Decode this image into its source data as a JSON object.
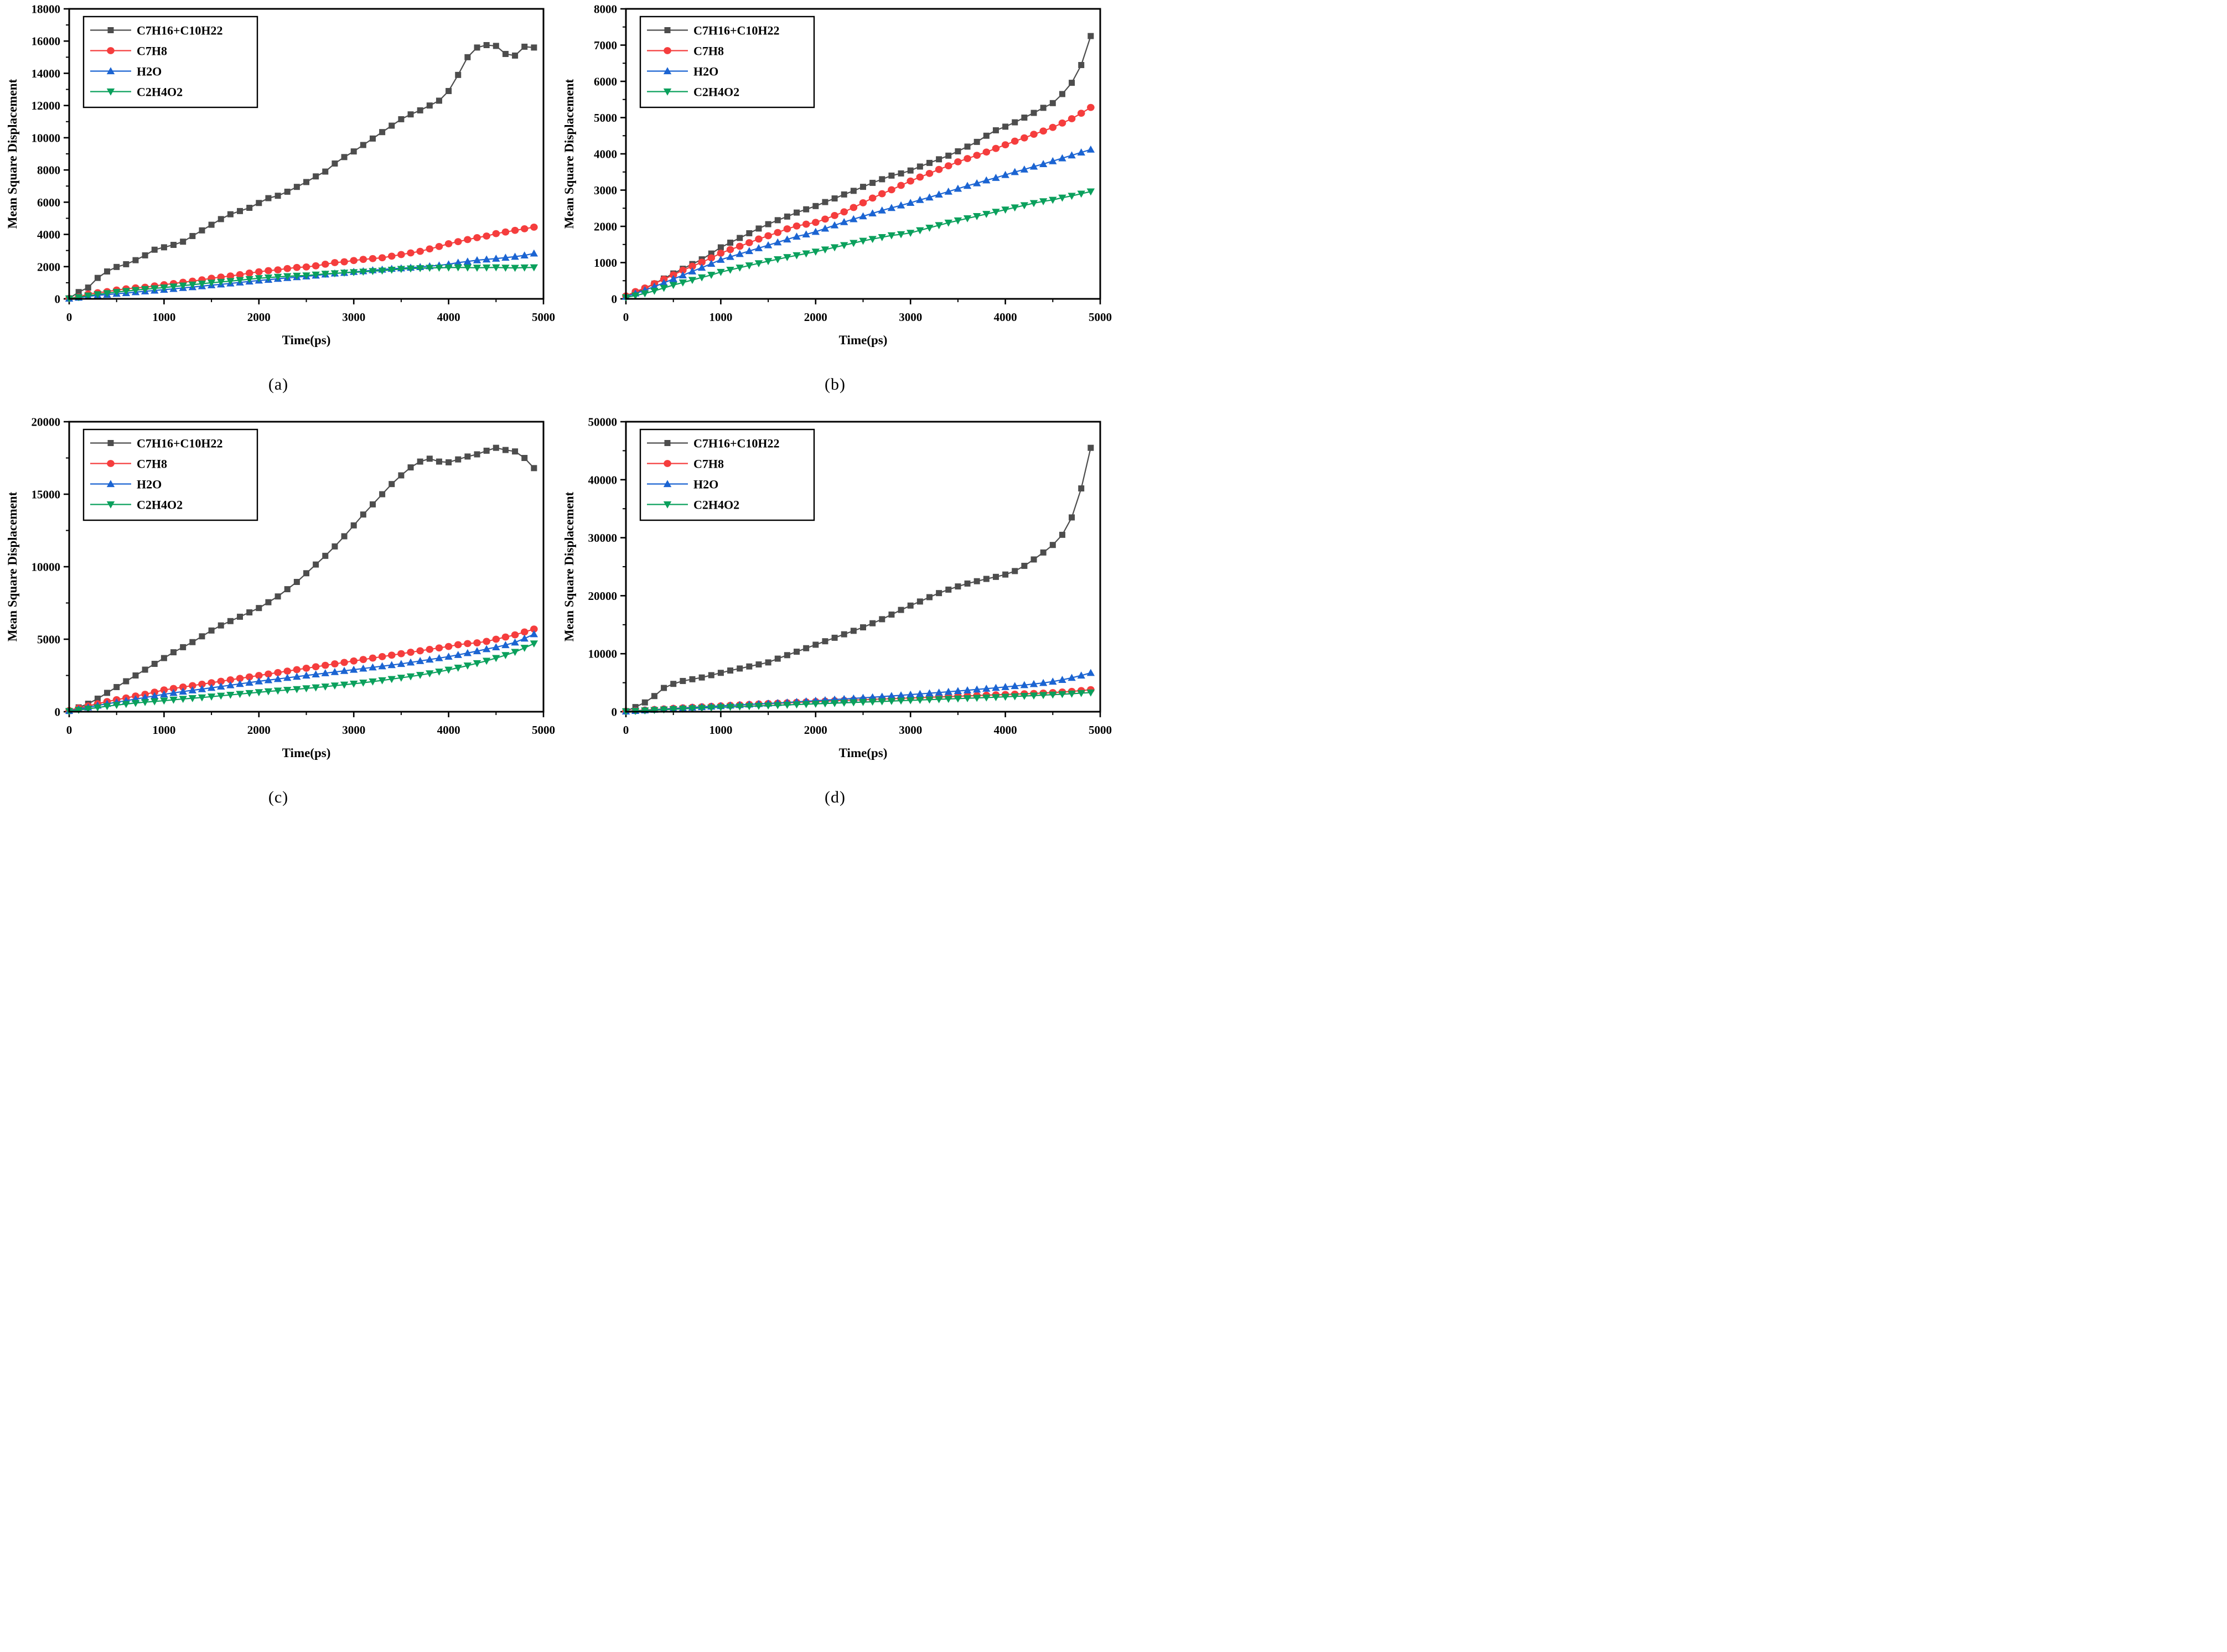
{
  "figure": {
    "background": "#ffffff",
    "axis_color": "#000000",
    "tick_label_fontsize": 21,
    "axis_label_fontsize": 23,
    "legend_fontsize": 22
  },
  "colors": {
    "gray": "#4d4d4d",
    "red": "#f53d3d",
    "blue": "#1b64d2",
    "green": "#0aa05c"
  },
  "legend_entries": [
    "C7H16+C10H22",
    "C7H8",
    "H2O",
    "C2H4O2"
  ],
  "chart_data": [
    {
      "type": "line",
      "label": "(a)",
      "xlabel": "Time(ps)",
      "ylabel": "Mean Square Displacement",
      "xlim": [
        0,
        5000
      ],
      "xtick_step": 1000,
      "ylim": [
        0,
        18000
      ],
      "ytick_step": 2000,
      "grid": false,
      "legend_position": "top-left",
      "x_start": 0,
      "x_step": 100,
      "series": [
        {
          "name": "C7H16+C10H22",
          "marker": "square",
          "color_key": "gray",
          "values": [
            30,
            420,
            700,
            1300,
            1700,
            1980,
            2150,
            2400,
            2700,
            3050,
            3200,
            3350,
            3550,
            3900,
            4250,
            4600,
            4950,
            5250,
            5450,
            5650,
            5950,
            6250,
            6400,
            6650,
            6950,
            7250,
            7600,
            7900,
            8400,
            8800,
            9150,
            9550,
            9950,
            10350,
            10750,
            11150,
            11450,
            11700,
            12000,
            12300,
            12900,
            13900,
            15000,
            15600,
            15750,
            15700,
            15200,
            15100,
            15650,
            15600
          ]
        },
        {
          "name": "C7H8",
          "marker": "circle",
          "color_key": "red",
          "values": [
            30,
            120,
            300,
            380,
            450,
            550,
            620,
            680,
            720,
            800,
            880,
            950,
            1030,
            1100,
            1180,
            1280,
            1350,
            1420,
            1500,
            1600,
            1680,
            1750,
            1800,
            1880,
            1950,
            1980,
            2050,
            2150,
            2250,
            2300,
            2380,
            2450,
            2500,
            2550,
            2650,
            2750,
            2850,
            2950,
            3100,
            3250,
            3420,
            3550,
            3680,
            3800,
            3900,
            4050,
            4150,
            4250,
            4350,
            4450
          ]
        },
        {
          "name": "H2O",
          "marker": "triangle-up",
          "color_key": "blue",
          "values": [
            20,
            80,
            150,
            220,
            260,
            320,
            360,
            420,
            470,
            520,
            570,
            620,
            680,
            730,
            790,
            850,
            900,
            960,
            1020,
            1080,
            1140,
            1190,
            1250,
            1300,
            1350,
            1400,
            1450,
            1520,
            1580,
            1620,
            1680,
            1720,
            1780,
            1820,
            1870,
            1900,
            1940,
            1980,
            2030,
            2080,
            2150,
            2250,
            2320,
            2400,
            2450,
            2500,
            2560,
            2620,
            2700,
            2820
          ]
        },
        {
          "name": "C2H4O2",
          "marker": "triangle-down",
          "color_key": "green",
          "values": [
            20,
            100,
            200,
            280,
            350,
            420,
            480,
            540,
            600,
            650,
            700,
            760,
            820,
            880,
            940,
            1000,
            1050,
            1100,
            1160,
            1220,
            1280,
            1320,
            1360,
            1400,
            1430,
            1450,
            1500,
            1550,
            1580,
            1620,
            1650,
            1680,
            1720,
            1750,
            1800,
            1850,
            1880,
            1900,
            1920,
            1930,
            1940,
            1950,
            1940,
            1930,
            1940,
            1950,
            1930,
            1920,
            1940,
            1950
          ]
        }
      ]
    },
    {
      "type": "line",
      "label": "(b)",
      "xlabel": "Time(ps)",
      "ylabel": "Mean Square Displacement",
      "xlim": [
        0,
        5000
      ],
      "xtick_step": 1000,
      "ylim": [
        0,
        8000
      ],
      "ytick_step": 1000,
      "grid": false,
      "legend_position": "top-left",
      "x_start": 0,
      "x_step": 100,
      "series": [
        {
          "name": "C7H16+C10H22",
          "marker": "square",
          "color_key": "gray",
          "values": [
            60,
            180,
            280,
            420,
            560,
            700,
            830,
            960,
            1090,
            1250,
            1420,
            1550,
            1680,
            1810,
            1940,
            2060,
            2170,
            2270,
            2380,
            2470,
            2560,
            2670,
            2770,
            2880,
            2980,
            3090,
            3200,
            3300,
            3400,
            3460,
            3540,
            3650,
            3750,
            3850,
            3950,
            4070,
            4200,
            4330,
            4500,
            4650,
            4750,
            4870,
            5000,
            5130,
            5270,
            5400,
            5650,
            5960,
            6450,
            7250
          ]
        },
        {
          "name": "C7H8",
          "marker": "circle",
          "color_key": "red",
          "values": [
            80,
            200,
            300,
            420,
            540,
            660,
            790,
            900,
            1010,
            1130,
            1260,
            1360,
            1450,
            1550,
            1650,
            1740,
            1830,
            1930,
            2010,
            2060,
            2110,
            2200,
            2300,
            2400,
            2520,
            2650,
            2780,
            2900,
            3010,
            3130,
            3250,
            3360,
            3460,
            3570,
            3670,
            3780,
            3870,
            3960,
            4050,
            4150,
            4250,
            4350,
            4440,
            4540,
            4630,
            4730,
            4850,
            4970,
            5120,
            5280
          ]
        },
        {
          "name": "H2O",
          "marker": "triangle-up",
          "color_key": "blue",
          "values": [
            60,
            150,
            240,
            340,
            440,
            550,
            650,
            760,
            860,
            970,
            1080,
            1160,
            1240,
            1320,
            1400,
            1480,
            1560,
            1640,
            1720,
            1780,
            1850,
            1940,
            2030,
            2120,
            2200,
            2280,
            2360,
            2440,
            2510,
            2580,
            2650,
            2730,
            2800,
            2880,
            2960,
            3040,
            3120,
            3190,
            3270,
            3340,
            3420,
            3500,
            3570,
            3650,
            3720,
            3800,
            3880,
            3960,
            4040,
            4120
          ]
        },
        {
          "name": "C2H4O2",
          "marker": "triangle-down",
          "color_key": "green",
          "values": [
            40,
            90,
            150,
            220,
            300,
            380,
            450,
            520,
            590,
            660,
            740,
            800,
            860,
            920,
            980,
            1040,
            1090,
            1150,
            1200,
            1250,
            1300,
            1360,
            1420,
            1480,
            1540,
            1600,
            1650,
            1700,
            1750,
            1780,
            1820,
            1890,
            1960,
            2030,
            2100,
            2160,
            2220,
            2280,
            2340,
            2400,
            2460,
            2520,
            2580,
            2640,
            2690,
            2730,
            2790,
            2840,
            2900,
            2960
          ]
        }
      ]
    },
    {
      "type": "line",
      "label": "(c)",
      "xlabel": "Time(ps)",
      "ylabel": "Mean Square Displacement",
      "xlim": [
        0,
        5000
      ],
      "xtick_step": 1000,
      "ylim": [
        0,
        20000
      ],
      "ytick_step": 5000,
      "grid": false,
      "legend_position": "top-left",
      "x_start": 0,
      "x_step": 100,
      "series": [
        {
          "name": "C7H16+C10H22",
          "marker": "square",
          "color_key": "gray",
          "values": [
            50,
            300,
            550,
            900,
            1300,
            1700,
            2100,
            2500,
            2900,
            3300,
            3700,
            4100,
            4450,
            4800,
            5200,
            5600,
            5950,
            6250,
            6550,
            6850,
            7150,
            7550,
            7950,
            8450,
            8950,
            9550,
            10150,
            10750,
            11400,
            12100,
            12850,
            13600,
            14300,
            15000,
            15700,
            16300,
            16850,
            17250,
            17450,
            17250,
            17200,
            17400,
            17600,
            17750,
            18000,
            18200,
            18050,
            17950,
            17500,
            16800
          ]
        },
        {
          "name": "C7H8",
          "marker": "circle",
          "color_key": "red",
          "values": [
            80,
            250,
            400,
            550,
            700,
            830,
            950,
            1080,
            1200,
            1350,
            1500,
            1600,
            1700,
            1800,
            1900,
            2000,
            2100,
            2200,
            2300,
            2400,
            2500,
            2600,
            2700,
            2800,
            2900,
            3000,
            3100,
            3200,
            3300,
            3400,
            3500,
            3600,
            3700,
            3800,
            3900,
            4000,
            4100,
            4200,
            4300,
            4400,
            4500,
            4620,
            4700,
            4750,
            4850,
            5000,
            5150,
            5300,
            5500,
            5700
          ]
        },
        {
          "name": "H2O",
          "marker": "triangle-up",
          "color_key": "blue",
          "values": [
            60,
            180,
            300,
            430,
            550,
            650,
            760,
            870,
            980,
            1090,
            1200,
            1300,
            1390,
            1480,
            1560,
            1650,
            1740,
            1830,
            1920,
            2010,
            2100,
            2180,
            2260,
            2340,
            2420,
            2500,
            2580,
            2660,
            2740,
            2820,
            2900,
            2980,
            3060,
            3140,
            3220,
            3300,
            3400,
            3500,
            3600,
            3700,
            3800,
            3920,
            4050,
            4180,
            4320,
            4450,
            4600,
            4780,
            5050,
            5350
          ]
        },
        {
          "name": "C2H4O2",
          "marker": "triangle-down",
          "color_key": "green",
          "values": [
            40,
            120,
            200,
            290,
            380,
            460,
            530,
            600,
            660,
            710,
            760,
            820,
            880,
            930,
            980,
            1040,
            1100,
            1160,
            1220,
            1280,
            1340,
            1400,
            1450,
            1500,
            1550,
            1610,
            1670,
            1730,
            1800,
            1860,
            1930,
            2000,
            2080,
            2160,
            2250,
            2340,
            2430,
            2530,
            2640,
            2760,
            2890,
            3030,
            3180,
            3340,
            3510,
            3700,
            3900,
            4120,
            4400,
            4700
          ]
        }
      ]
    },
    {
      "type": "line",
      "label": "(d)",
      "xlabel": "Time(ps)",
      "ylabel": "Mean Square Displacement",
      "xlim": [
        0,
        5000
      ],
      "xtick_step": 1000,
      "ylim": [
        0,
        50000
      ],
      "ytick_step": 10000,
      "grid": false,
      "legend_position": "top-left",
      "x_start": 0,
      "x_step": 100,
      "series": [
        {
          "name": "C7H16+C10H22",
          "marker": "square",
          "color_key": "gray",
          "values": [
            100,
            800,
            1600,
            2700,
            4100,
            4800,
            5300,
            5600,
            5900,
            6300,
            6700,
            7100,
            7450,
            7800,
            8150,
            8500,
            9150,
            9750,
            10350,
            10950,
            11550,
            12150,
            12750,
            13350,
            13950,
            14550,
            15250,
            15950,
            16750,
            17550,
            18300,
            19000,
            19750,
            20450,
            21050,
            21600,
            22100,
            22500,
            22900,
            23250,
            23650,
            24250,
            25150,
            26250,
            27450,
            28750,
            30500,
            33500,
            38500,
            45500
          ]
        },
        {
          "name": "C7H8",
          "marker": "circle",
          "color_key": "red",
          "values": [
            80,
            180,
            280,
            380,
            480,
            580,
            670,
            760,
            850,
            930,
            1010,
            1090,
            1170,
            1250,
            1330,
            1400,
            1470,
            1540,
            1610,
            1680,
            1750,
            1820,
            1890,
            1950,
            2010,
            2070,
            2130,
            2190,
            2250,
            2310,
            2370,
            2430,
            2490,
            2550,
            2610,
            2670,
            2730,
            2790,
            2850,
            2910,
            2970,
            3030,
            3090,
            3150,
            3220,
            3300,
            3400,
            3500,
            3650,
            3800
          ]
        },
        {
          "name": "H2O",
          "marker": "triangle-up",
          "color_key": "blue",
          "values": [
            60,
            150,
            250,
            350,
            450,
            540,
            630,
            720,
            810,
            900,
            990,
            1080,
            1170,
            1260,
            1340,
            1420,
            1510,
            1600,
            1700,
            1800,
            1900,
            2000,
            2100,
            2200,
            2300,
            2400,
            2500,
            2610,
            2720,
            2830,
            2950,
            3070,
            3190,
            3310,
            3440,
            3570,
            3700,
            3840,
            3980,
            4120,
            4270,
            4430,
            4600,
            4780,
            4970,
            5200,
            5500,
            5850,
            6250,
            6700
          ]
        },
        {
          "name": "C2H4O2",
          "marker": "triangle-down",
          "color_key": "green",
          "values": [
            50,
            120,
            200,
            280,
            360,
            430,
            500,
            570,
            640,
            700,
            760,
            820,
            880,
            940,
            1000,
            1060,
            1120,
            1180,
            1240,
            1300,
            1360,
            1420,
            1480,
            1540,
            1600,
            1660,
            1720,
            1780,
            1840,
            1900,
            1960,
            2020,
            2080,
            2140,
            2200,
            2260,
            2320,
            2380,
            2440,
            2500,
            2570,
            2640,
            2710,
            2780,
            2860,
            2940,
            3020,
            3100,
            3200,
            3300
          ]
        }
      ]
    }
  ]
}
